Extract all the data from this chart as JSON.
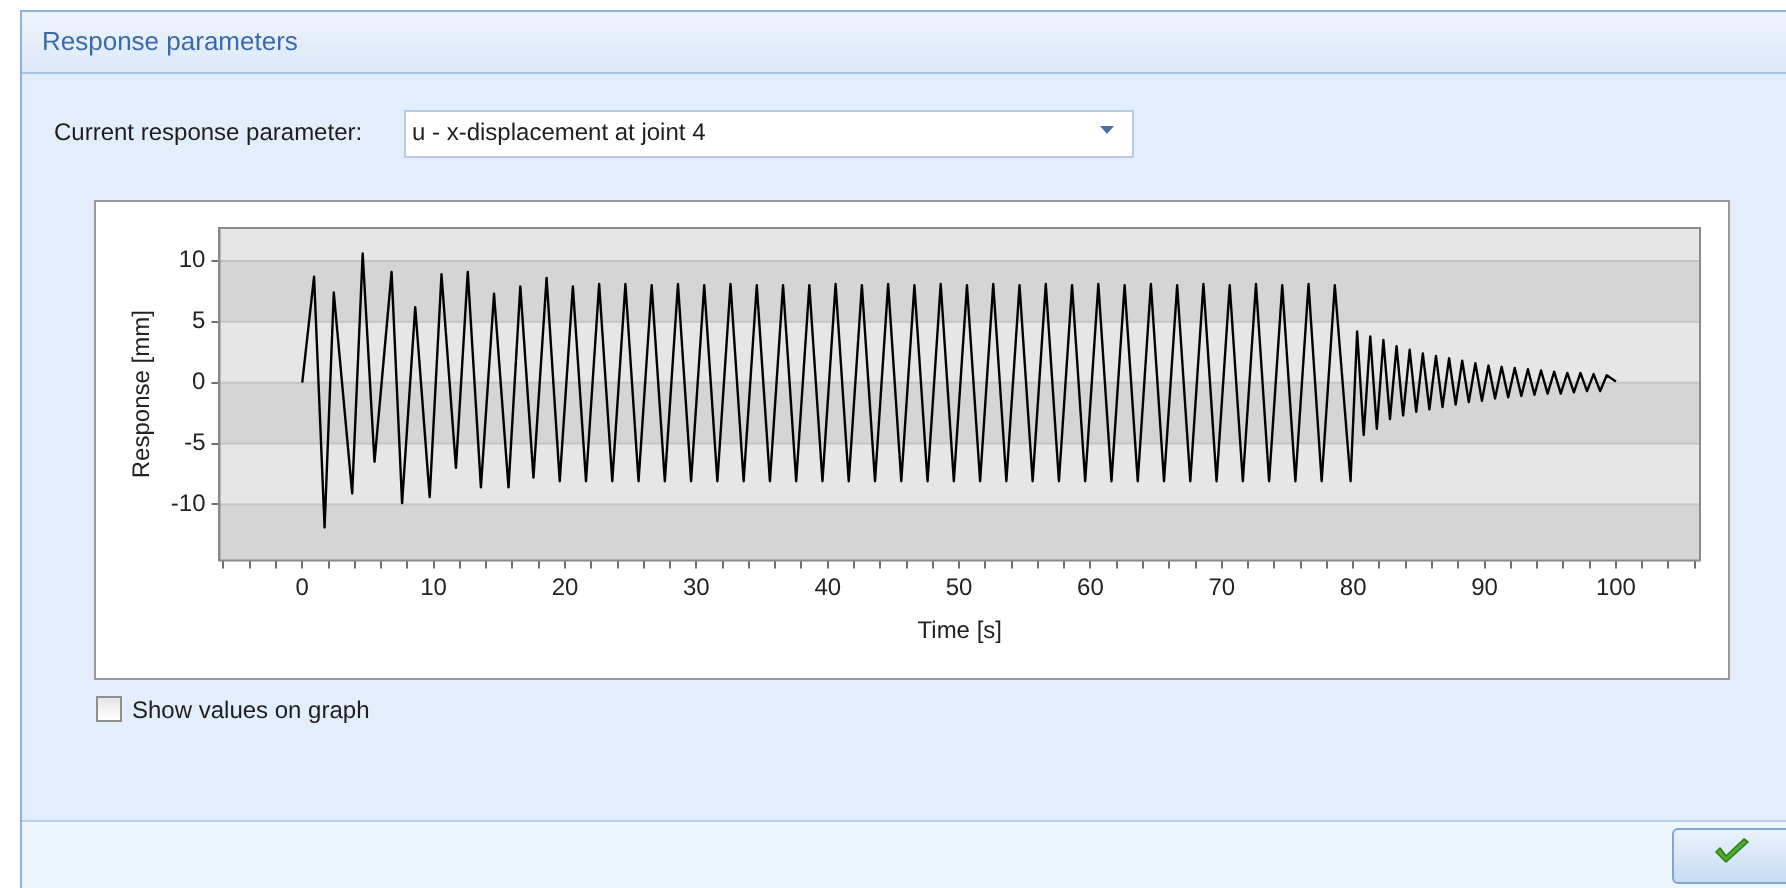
{
  "chart_data": {
    "type": "line",
    "title": "Response parameters",
    "annotations": [
      "Current response parameter:",
      "u - x-displacement at joint 4",
      "Show values on graph"
    ],
    "xlabel": "Time [s]",
    "ylabel": "Response [mm]",
    "color": "#000000",
    "x": [
      0,
      0.9,
      1.7,
      2.4,
      3.8,
      4.6,
      5.5,
      6.8,
      7.6,
      8.6,
      9.7,
      10.6,
      11.7,
      12.6,
      13.6,
      14.6,
      15.7,
      16.6,
      17.6,
      18.6,
      19.6,
      20.6,
      21.6,
      22.6,
      23.6,
      24.6,
      25.6,
      26.6,
      27.6,
      28.6,
      29.6,
      30.6,
      31.6,
      32.6,
      33.6,
      34.6,
      35.6,
      36.6,
      37.6,
      38.6,
      39.6,
      40.6,
      41.6,
      42.6,
      43.6,
      44.6,
      45.6,
      46.6,
      47.6,
      48.6,
      49.6,
      50.6,
      51.6,
      52.6,
      53.6,
      54.6,
      55.6,
      56.6,
      57.6,
      58.6,
      59.6,
      60.6,
      61.6,
      62.6,
      63.6,
      64.6,
      65.6,
      66.6,
      67.6,
      68.6,
      69.6,
      70.6,
      71.6,
      72.6,
      73.6,
      74.6,
      75.6,
      76.6,
      77.6,
      78.6,
      79.8,
      80.3,
      80.8,
      81.3,
      81.8,
      82.3,
      82.8,
      83.3,
      83.8,
      84.3,
      84.8,
      85.3,
      85.8,
      86.3,
      86.8,
      87.3,
      87.8,
      88.3,
      88.8,
      89.3,
      89.8,
      90.3,
      90.8,
      91.3,
      91.8,
      92.3,
      92.8,
      93.3,
      93.8,
      94.3,
      94.8,
      95.3,
      95.8,
      96.3,
      96.8,
      97.3,
      97.8,
      98.3,
      98.8,
      99.3,
      100
    ],
    "values": [
      0,
      8.7,
      -11.9,
      7.4,
      -9.1,
      10.6,
      -6.5,
      9.1,
      -9.9,
      6.2,
      -9.4,
      8.9,
      -7.0,
      9.1,
      -8.6,
      7.3,
      -8.6,
      7.9,
      -7.8,
      8.6,
      -8.1,
      7.9,
      -8.1,
      8.1,
      -8.1,
      8.1,
      -8.1,
      8.0,
      -8.1,
      8.1,
      -8.1,
      8.0,
      -8.1,
      8.1,
      -8.1,
      8.0,
      -8.1,
      8.0,
      -8.1,
      8.0,
      -8.1,
      8.1,
      -8.1,
      8.0,
      -8.1,
      8.1,
      -8.1,
      8.0,
      -8.1,
      8.1,
      -8.1,
      8.0,
      -8.1,
      8.1,
      -8.1,
      8.0,
      -8.1,
      8.1,
      -8.1,
      8.0,
      -8.1,
      8.1,
      -8.1,
      8.0,
      -8.1,
      8.1,
      -8.1,
      8.0,
      -8.1,
      8.1,
      -8.1,
      8.0,
      -8.1,
      8.1,
      -8.1,
      8.0,
      -8.1,
      8.1,
      -8.1,
      8.0,
      -8.1,
      4.2,
      -4.3,
      3.8,
      -3.8,
      3.5,
      -3.0,
      3.0,
      -2.7,
      2.7,
      -2.4,
      2.4,
      -2.2,
      2.2,
      -2.0,
      2.0,
      -1.8,
      1.8,
      -1.6,
      1.6,
      -1.5,
      1.4,
      -1.3,
      1.3,
      -1.2,
      1.2,
      -1.1,
      1.1,
      -1.0,
      1.0,
      -0.9,
      0.9,
      -0.9,
      0.8,
      -0.8,
      0.8,
      -0.7,
      0.7,
      -0.7,
      0.6,
      0.1
    ],
    "xlim": [
      -6.3,
      106.4
    ],
    "ylim": [
      -14.6,
      12.7
    ],
    "xticks": [
      {
        "value": -6,
        "label": null
      },
      {
        "value": -4,
        "label": null
      },
      {
        "value": -2,
        "label": null
      },
      0,
      {
        "value": 2,
        "label": null
      },
      {
        "value": 4,
        "label": null
      },
      {
        "value": 6,
        "label": null
      },
      {
        "value": 8,
        "label": null
      },
      10,
      {
        "value": 12,
        "label": null
      },
      {
        "value": 14,
        "label": null
      },
      {
        "value": 16,
        "label": null
      },
      {
        "value": 18,
        "label": null
      },
      20,
      {
        "value": 22,
        "label": null
      },
      {
        "value": 24,
        "label": null
      },
      {
        "value": 26,
        "label": null
      },
      {
        "value": 28,
        "label": null
      },
      30,
      {
        "value": 32,
        "label": null
      },
      {
        "value": 34,
        "label": null
      },
      {
        "value": 36,
        "label": null
      },
      {
        "value": 38,
        "label": null
      },
      40,
      {
        "value": 42,
        "label": null
      },
      {
        "value": 44,
        "label": null
      },
      {
        "value": 46,
        "label": null
      },
      {
        "value": 48,
        "label": null
      },
      50,
      {
        "value": 52,
        "label": null
      },
      {
        "value": 54,
        "label": null
      },
      {
        "value": 56,
        "label": null
      },
      {
        "value": 58,
        "label": null
      },
      60,
      {
        "value": 62,
        "label": null
      },
      {
        "value": 64,
        "label": null
      },
      {
        "value": 66,
        "label": null
      },
      {
        "value": 68,
        "label": null
      },
      70,
      {
        "value": 72,
        "label": null
      },
      {
        "value": 74,
        "label": null
      },
      {
        "value": 76,
        "label": null
      },
      {
        "value": 78,
        "label": null
      },
      80,
      {
        "value": 82,
        "label": null
      },
      {
        "value": 84,
        "label": null
      },
      {
        "value": 86,
        "label": null
      },
      {
        "value": 88,
        "label": null
      },
      90,
      {
        "value": 92,
        "label": null
      },
      {
        "value": 94,
        "label": null
      },
      {
        "value": 96,
        "label": null
      },
      {
        "value": 98,
        "label": null
      },
      100,
      {
        "value": 102,
        "label": null
      },
      {
        "value": 104,
        "label": null
      },
      {
        "value": 106,
        "label": null
      }
    ],
    "yticks": [
      -10,
      -5,
      0,
      5,
      10
    ],
    "grid": "y"
  }
}
